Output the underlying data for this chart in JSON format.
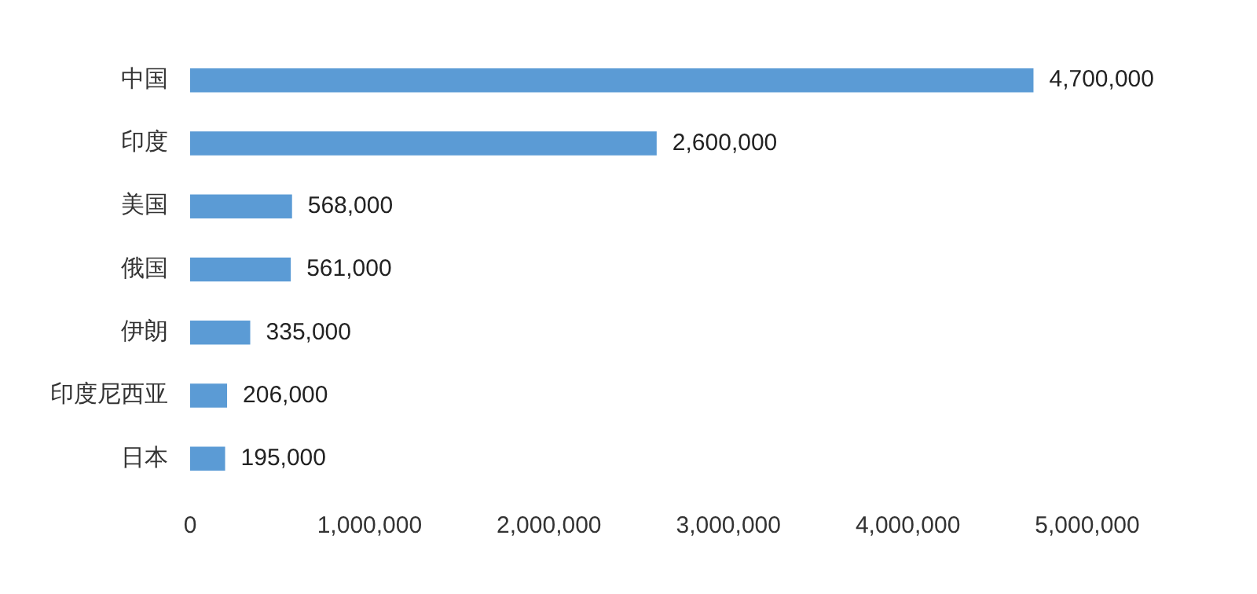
{
  "chart_data": {
    "type": "bar",
    "orientation": "horizontal",
    "categories": [
      "中国",
      "印度",
      "美国",
      "俄国",
      "伊朗",
      "印度尼西亚",
      "日本"
    ],
    "values": [
      4700000,
      2600000,
      568000,
      561000,
      335000,
      206000,
      195000
    ],
    "value_labels": [
      "4,700,000",
      "2,600,000",
      "568,000",
      "561,000",
      "335,000",
      "206,000",
      "195,000"
    ],
    "color": "#5b9bd5",
    "xlim": [
      0,
      5000000
    ],
    "xticks": [
      0,
      {
        "value": 1000000,
        "label": "1,000,000"
      },
      {
        "value": 2000000,
        "label": "2,000,000"
      },
      {
        "value": 3000000,
        "label": "3,000,000"
      },
      {
        "value": 4000000,
        "label": "4,000,000"
      },
      {
        "value": 5000000,
        "label": "5,000,000"
      }
    ],
    "grid": false,
    "legend": false
  }
}
